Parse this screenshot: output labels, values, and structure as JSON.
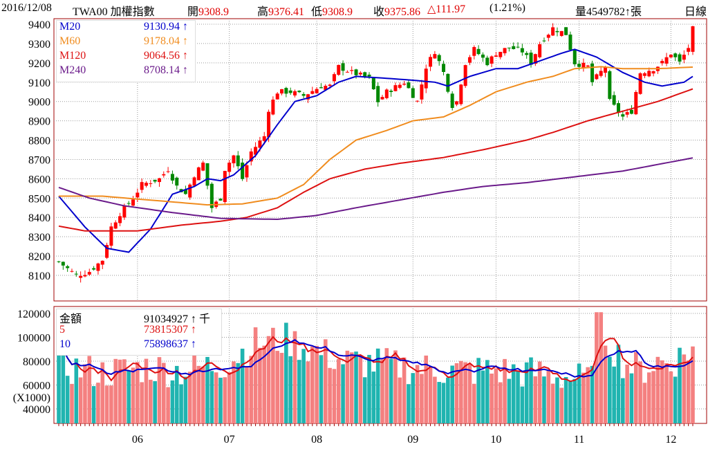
{
  "header": {
    "date": "2016/12/08",
    "symbol": "TWA00 加權指數",
    "open_label": "開",
    "open": "9308.9",
    "high_label": "高",
    "high": "9376.41",
    "low_label": "低",
    "low": "9308.9",
    "close_label": "收",
    "close": "9375.86",
    "change": "△111.97",
    "change_pct": "(1.21%)",
    "volume_label": "量",
    "volume": "4549782↑張",
    "period": "日線"
  },
  "ma_legend": [
    {
      "name": "M20",
      "value": "9130.94 ↑",
      "color": "#0000cc"
    },
    {
      "name": "M60",
      "value": "9178.04 ↑",
      "color": "#f08c1e"
    },
    {
      "name": "M120",
      "value": "9064.56 ↑",
      "color": "#dd1111"
    },
    {
      "name": "M240",
      "value": "8708.14 ↑",
      "color": "#6a1a8a"
    }
  ],
  "vol_legend": [
    {
      "name": "金額",
      "value": "91034927 ↑ 千",
      "color": "#000000"
    },
    {
      "name": "5",
      "value": "73815307 ↑",
      "color": "#dd1111"
    },
    {
      "name": "10",
      "value": "75898637 ↑",
      "color": "#0000cc"
    }
  ],
  "chart_data": [
    {
      "type": "candlestick",
      "title": "TWA00 加權指數 日線",
      "bars": 146,
      "ylim": [
        8000,
        9420
      ],
      "yticks": [
        "9400",
        "9300",
        "9200",
        "9100",
        "9000",
        "8900",
        "8800",
        "8700",
        "8600",
        "8500",
        "8400",
        "8300",
        "8200",
        "8100"
      ],
      "close_keypoints": [
        [
          0,
          8170
        ],
        [
          4,
          8100
        ],
        [
          7,
          8120
        ],
        [
          10,
          8180
        ],
        [
          12,
          8350
        ],
        [
          14,
          8420
        ],
        [
          17,
          8500
        ],
        [
          19,
          8570
        ],
        [
          23,
          8600
        ],
        [
          25,
          8650
        ],
        [
          27,
          8560
        ],
        [
          29,
          8520
        ],
        [
          31,
          8620
        ],
        [
          33,
          8680
        ],
        [
          35,
          8450
        ],
        [
          37,
          8500
        ],
        [
          38,
          8650
        ],
        [
          40,
          8720
        ],
        [
          42,
          8600
        ],
        [
          44,
          8740
        ],
        [
          47,
          8820
        ],
        [
          48,
          8960
        ],
        [
          50,
          9050
        ],
        [
          53,
          9050
        ],
        [
          56,
          9030
        ],
        [
          60,
          9080
        ],
        [
          62,
          9080
        ],
        [
          64,
          9180
        ],
        [
          67,
          9150
        ],
        [
          71,
          9120
        ],
        [
          73,
          9000
        ],
        [
          75,
          9050
        ],
        [
          79,
          9100
        ],
        [
          82,
          9000
        ],
        [
          84,
          9180
        ],
        [
          86,
          9260
        ],
        [
          88,
          9150
        ],
        [
          90,
          8980
        ],
        [
          91,
          9000
        ],
        [
          93,
          9200
        ],
        [
          95,
          9270
        ],
        [
          98,
          9200
        ],
        [
          100,
          9250
        ],
        [
          103,
          9280
        ],
        [
          106,
          9260
        ],
        [
          108,
          9200
        ],
        [
          110,
          9300
        ],
        [
          113,
          9380
        ],
        [
          116,
          9350
        ],
        [
          118,
          9200
        ],
        [
          121,
          9180
        ],
        [
          122,
          9100
        ],
        [
          125,
          9180
        ],
        [
          126,
          9000
        ],
        [
          129,
          8920
        ],
        [
          131,
          8950
        ],
        [
          133,
          9150
        ],
        [
          136,
          9170
        ],
        [
          138,
          9200
        ],
        [
          140,
          9250
        ],
        [
          142,
          9200
        ],
        [
          144,
          9280
        ],
        [
          145,
          9375
        ]
      ],
      "ma20": [
        [
          0,
          8510
        ],
        [
          6,
          8350
        ],
        [
          11,
          8240
        ],
        [
          16,
          8220
        ],
        [
          21,
          8340
        ],
        [
          26,
          8520
        ],
        [
          31,
          8560
        ],
        [
          34,
          8600
        ],
        [
          37,
          8590
        ],
        [
          40,
          8620
        ],
        [
          45,
          8720
        ],
        [
          50,
          8880
        ],
        [
          54,
          9000
        ],
        [
          59,
          9030
        ],
        [
          64,
          9100
        ],
        [
          68,
          9130
        ],
        [
          75,
          9120
        ],
        [
          81,
          9110
        ],
        [
          86,
          9100
        ],
        [
          89,
          9080
        ],
        [
          94,
          9130
        ],
        [
          100,
          9170
        ],
        [
          105,
          9170
        ],
        [
          110,
          9210
        ],
        [
          115,
          9250
        ],
        [
          118,
          9270
        ],
        [
          123,
          9230
        ],
        [
          129,
          9150
        ],
        [
          134,
          9100
        ],
        [
          138,
          9080
        ],
        [
          143,
          9100
        ],
        [
          145,
          9130
        ]
      ],
      "ma60": [
        [
          0,
          8510
        ],
        [
          10,
          8510
        ],
        [
          26,
          8480
        ],
        [
          34,
          8465
        ],
        [
          42,
          8470
        ],
        [
          50,
          8500
        ],
        [
          56,
          8570
        ],
        [
          62,
          8700
        ],
        [
          68,
          8800
        ],
        [
          75,
          8850
        ],
        [
          81,
          8900
        ],
        [
          88,
          8920
        ],
        [
          94,
          8980
        ],
        [
          100,
          9050
        ],
        [
          107,
          9100
        ],
        [
          113,
          9130
        ],
        [
          118,
          9170
        ],
        [
          124,
          9180
        ],
        [
          129,
          9170
        ],
        [
          137,
          9170
        ],
        [
          145,
          9178
        ]
      ],
      "ma120": [
        [
          0,
          8355
        ],
        [
          6,
          8330
        ],
        [
          18,
          8330
        ],
        [
          28,
          8360
        ],
        [
          37,
          8380
        ],
        [
          43,
          8400
        ],
        [
          50,
          8450
        ],
        [
          56,
          8530
        ],
        [
          62,
          8600
        ],
        [
          70,
          8650
        ],
        [
          78,
          8680
        ],
        [
          88,
          8710
        ],
        [
          97,
          8750
        ],
        [
          107,
          8800
        ],
        [
          113,
          8840
        ],
        [
          121,
          8900
        ],
        [
          129,
          8950
        ],
        [
          137,
          9000
        ],
        [
          145,
          9065
        ]
      ],
      "ma240": [
        [
          0,
          8555
        ],
        [
          7,
          8500
        ],
        [
          15,
          8460
        ],
        [
          26,
          8425
        ],
        [
          37,
          8395
        ],
        [
          50,
          8390
        ],
        [
          59,
          8410
        ],
        [
          68,
          8450
        ],
        [
          78,
          8490
        ],
        [
          88,
          8530
        ],
        [
          97,
          8560
        ],
        [
          107,
          8580
        ],
        [
          118,
          8610
        ],
        [
          129,
          8640
        ],
        [
          145,
          8708
        ]
      ]
    },
    {
      "type": "bar",
      "title": "金額",
      "ylabel": "(X1000)",
      "ylim": [
        28000,
        122000
      ],
      "yticks": [
        "120000",
        "100000",
        "80000",
        "60000",
        "40000"
      ],
      "xticks": [
        {
          "i": 18,
          "label": "06"
        },
        {
          "i": 39,
          "label": "07"
        },
        {
          "i": 59,
          "label": "08"
        },
        {
          "i": 81,
          "label": "09"
        },
        {
          "i": 100,
          "label": "10"
        },
        {
          "i": 119,
          "label": "11"
        },
        {
          "i": 140,
          "label": "12"
        }
      ],
      "volume_keypoints": [
        [
          0,
          76000
        ],
        [
          10,
          70000
        ],
        [
          20,
          75000
        ],
        [
          28,
          72000
        ],
        [
          38,
          78000
        ],
        [
          45,
          95000
        ],
        [
          52,
          98000
        ],
        [
          58,
          90000
        ],
        [
          65,
          80000
        ],
        [
          72,
          78000
        ],
        [
          80,
          75000
        ],
        [
          90,
          72000
        ],
        [
          100,
          72000
        ],
        [
          110,
          70000
        ],
        [
          118,
          66000
        ],
        [
          121,
          62000
        ],
        [
          123,
          118000
        ],
        [
          126,
          95000
        ],
        [
          129,
          80000
        ],
        [
          133,
          72000
        ],
        [
          137,
          80000
        ],
        [
          140,
          78000
        ],
        [
          145,
          91000
        ]
      ]
    }
  ]
}
